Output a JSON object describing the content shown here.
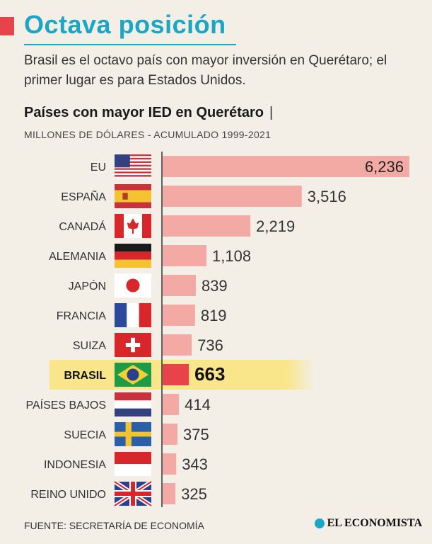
{
  "header": {
    "title": "Octava posición",
    "subtitle": "Brasil es el octavo país con mayor inversión en Querétaro; el primer lugar es para Estados Unidos."
  },
  "chart": {
    "title": "Países con mayor IED en Querétaro",
    "title_sep": "|",
    "unit": "MILLONES DE DÓLARES - ACUMULADO 1999-2021"
  },
  "chart_data": {
    "type": "bar",
    "orientation": "horizontal",
    "categories": [
      "EU",
      "ESPAÑA",
      "CANADÁ",
      "ALEMANIA",
      "JAPÓN",
      "FRANCIA",
      "SUIZA",
      "BRASIL",
      "PAÍSES BAJOS",
      "SUECIA",
      "INDONESIA",
      "REINO UNIDO"
    ],
    "values": [
      6236,
      3516,
      2219,
      1108,
      839,
      819,
      736,
      663,
      414,
      375,
      343,
      325
    ],
    "value_labels": [
      "6,236",
      "3,516",
      "2,219",
      "1,108",
      "839",
      "819",
      "736",
      "663",
      "414",
      "375",
      "343",
      "325"
    ],
    "flags": [
      "flag-usa-icon",
      "flag-spain-icon",
      "flag-canada-icon",
      "flag-germany-icon",
      "flag-japan-icon",
      "flag-france-icon",
      "flag-switzerland-icon",
      "flag-brazil-icon",
      "flag-netherlands-icon",
      "flag-sweden-icon",
      "flag-indonesia-icon",
      "flag-uk-icon"
    ],
    "highlight": "BRASIL",
    "xlim": [
      0,
      6236
    ],
    "colors": {
      "bar": "#f4aaa4",
      "highlight_bar": "#e8434b",
      "highlight_band": "#f9e58a"
    }
  },
  "footer": {
    "source": "FUENTE: SECRETARÍA DE ECONOMÍA",
    "brand": "EL ECONOMISTA"
  }
}
